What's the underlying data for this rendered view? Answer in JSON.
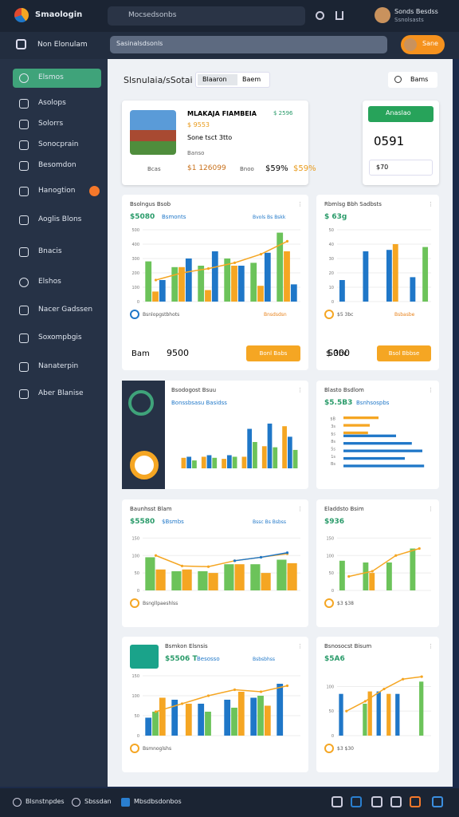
{
  "topbar": {
    "app_name": "Smaologin",
    "search": "Mocsedsonbs",
    "user": "Sonds Besdss",
    "user_sub": "Ssnolsasts"
  },
  "subbar": {
    "title": "Non Elonulam",
    "search": "Sasinalsdsonls",
    "button": "Sane"
  },
  "sidebar": {
    "items": [
      "Elsmos",
      "Asolops",
      "Solorrs",
      "Sonocprain",
      "Besomdon",
      "Hanogtion",
      "Aoglis Blons",
      "Bnacis",
      "Elshos",
      "Nacer Gadssen",
      "Soxompbgis",
      "Nanaterpin",
      "Aber Blanise"
    ]
  },
  "header": {
    "title": "Slsnulaia/sSotai",
    "tabs": [
      "Blaaron",
      "Baem"
    ],
    "search": "Bams"
  },
  "property": {
    "name": "MLAKAJA FIAMBEIA",
    "tag": "$ 2596",
    "price_tag": "$ 9553",
    "address": "Sone tsct 3tto",
    "label": "Banso",
    "beds_label": "Bcas",
    "price": "$1 126099",
    "baths_label": "Bnoo",
    "value1": "$59%",
    "value2": "$59%"
  },
  "side_card": {
    "button": "Anaslao",
    "value": "0591",
    "field": "$70"
  },
  "bottombar": {
    "items": [
      "Blsnstnpdes",
      "Sbssdan",
      "Mbsdbsdonbos"
    ]
  },
  "widgets": [
    {
      "title": "Bsolngus Bsob",
      "value": "$5080",
      "tag": "Bsmonts",
      "tag2": "Bvols Bs Bskk",
      "yticks": [
        0,
        100,
        200,
        300,
        400,
        500
      ],
      "ylim": [
        0,
        500
      ],
      "series": [
        {
          "color": "#6cc35a",
          "values": [
            280,
            240,
            250,
            300,
            270,
            480
          ]
        },
        {
          "color": "#f5a623",
          "values": [
            70,
            240,
            80,
            250,
            110,
            350
          ]
        },
        {
          "color": "#1f77c8",
          "values": [
            150,
            300,
            350,
            250,
            340,
            120
          ]
        }
      ],
      "line": {
        "color": "#f5a623",
        "values": [
          150,
          200,
          230,
          270,
          330,
          420
        ]
      },
      "legend": "Bsnlopgstbhots",
      "legend2": "Bnsdsdsn",
      "footer_label": "Bam",
      "footer_value": "9500",
      "button": "Bonl Babs"
    },
    {
      "title": "Rbmlsg Bbh Sadbsts",
      "value": "$ 63g",
      "yticks": [
        0,
        10,
        20,
        30,
        40,
        50
      ],
      "ylim": [
        0,
        50
      ],
      "series": [
        {
          "color": "#1f77c8",
          "values": [
            15,
            35,
            36,
            17
          ]
        },
        {
          "color": "#f5a623",
          "values": [
            0,
            0,
            40,
            0
          ]
        },
        {
          "color": "#6cc35a",
          "values": [
            0,
            0,
            0,
            38
          ]
        }
      ],
      "legend": "$5 3bc",
      "legend2": "Bsbasbe",
      "footer_label": "$ 3bc",
      "footer_value": "S000",
      "button": "Bsol Bbbse"
    },
    {
      "title": "Bsodogost Bsuu",
      "tag": "Bonssbsasu Basidss",
      "yticks": [],
      "ylim": [
        0,
        100
      ],
      "series": [
        {
          "color": "#f5a623",
          "values": [
            20,
            22,
            18,
            22,
            42,
            80
          ]
        },
        {
          "color": "#1f77c8",
          "values": [
            22,
            25,
            25,
            75,
            85,
            60
          ]
        },
        {
          "color": "#6cc35a",
          "values": [
            15,
            20,
            22,
            50,
            40,
            35
          ]
        }
      ]
    },
    {
      "title": "Blasto Bsdlom",
      "value": "$5.5B3",
      "tag": "Bsnhsospbs",
      "horizontal": true,
      "categories": [
        "$B",
        "3s",
        "$s",
        "8s",
        "5s",
        "1s",
        "Bs"
      ],
      "ylim": [
        0,
        100
      ],
      "series": [
        {
          "color": "#f5a623",
          "values": [
            40,
            30,
            28,
            0,
            0,
            0,
            0
          ]
        },
        {
          "color": "#1f77c8",
          "values": [
            0,
            0,
            60,
            78,
            90,
            70,
            92
          ]
        }
      ]
    },
    {
      "title": "Baunhsst Blam",
      "value": "$5580",
      "tag": "$Bsmbs",
      "tag2": "Bssc Bs Bsbss",
      "yticks": [
        0,
        50,
        100,
        150
      ],
      "ylim": [
        0,
        160
      ],
      "series": [
        {
          "color": "#6cc35a",
          "values": [
            95,
            55,
            55,
            75,
            75,
            88
          ]
        },
        {
          "color": "#f5a623",
          "values": [
            60,
            60,
            50,
            75,
            50,
            78
          ]
        }
      ],
      "line": {
        "color": "#f5a623",
        "values": [
          100,
          70,
          68,
          85,
          95,
          105
        ]
      },
      "line2": {
        "color": "#1f77c8",
        "values": [
          null,
          null,
          null,
          85,
          95,
          108
        ]
      },
      "legend": "Bsngllpaeshlss"
    },
    {
      "title": "Eladdsto Bsim",
      "value": "$936",
      "yticks": [
        0,
        50,
        100,
        150
      ],
      "ylim": [
        0,
        160
      ],
      "series": [
        {
          "color": "#6cc35a",
          "values": [
            85,
            80,
            80,
            120
          ]
        },
        {
          "color": "#f5a623",
          "values": [
            0,
            50,
            0,
            0
          ]
        },
        {
          "color": "#1f77c8",
          "values": [
            0,
            0,
            0,
            0
          ]
        }
      ],
      "line": {
        "color": "#f5a623",
        "values": [
          40,
          55,
          100,
          120
        ]
      },
      "legend": "$3 $38"
    },
    {
      "title": "Bsmkon Elsnsis",
      "value": "$5506 T",
      "tag": "Besosso",
      "tag2": "Bsbsbhss",
      "yticks": [
        0,
        50,
        100,
        150
      ],
      "ylim": [
        0,
        160
      ],
      "series": [
        {
          "color": "#1f77c8",
          "values": [
            45,
            90,
            80,
            90,
            95,
            130
          ]
        },
        {
          "color": "#6cc35a",
          "values": [
            60,
            0,
            60,
            70,
            100,
            0
          ]
        },
        {
          "color": "#f5a623",
          "values": [
            95,
            80,
            0,
            110,
            75,
            0
          ]
        }
      ],
      "line": {
        "color": "#f5a623",
        "values": [
          60,
          80,
          100,
          115,
          110,
          125
        ]
      },
      "legend": "Bsmnoglshs"
    },
    {
      "title": "Bsnosocst Bisum",
      "value": "$5A6",
      "yticks": [
        0,
        50,
        100
      ],
      "ylim": [
        0,
        130
      ],
      "series": [
        {
          "color": "#1f77c8",
          "values": [
            85,
            0,
            90,
            85,
            0
          ]
        },
        {
          "color": "#6cc35a",
          "values": [
            0,
            65,
            0,
            0,
            110
          ]
        },
        {
          "color": "#f5a623",
          "values": [
            0,
            90,
            85,
            0,
            0
          ]
        }
      ],
      "line": {
        "color": "#f5a623",
        "values": [
          50,
          70,
          95,
          115,
          120
        ]
      },
      "legend": "$3 $30"
    }
  ]
}
